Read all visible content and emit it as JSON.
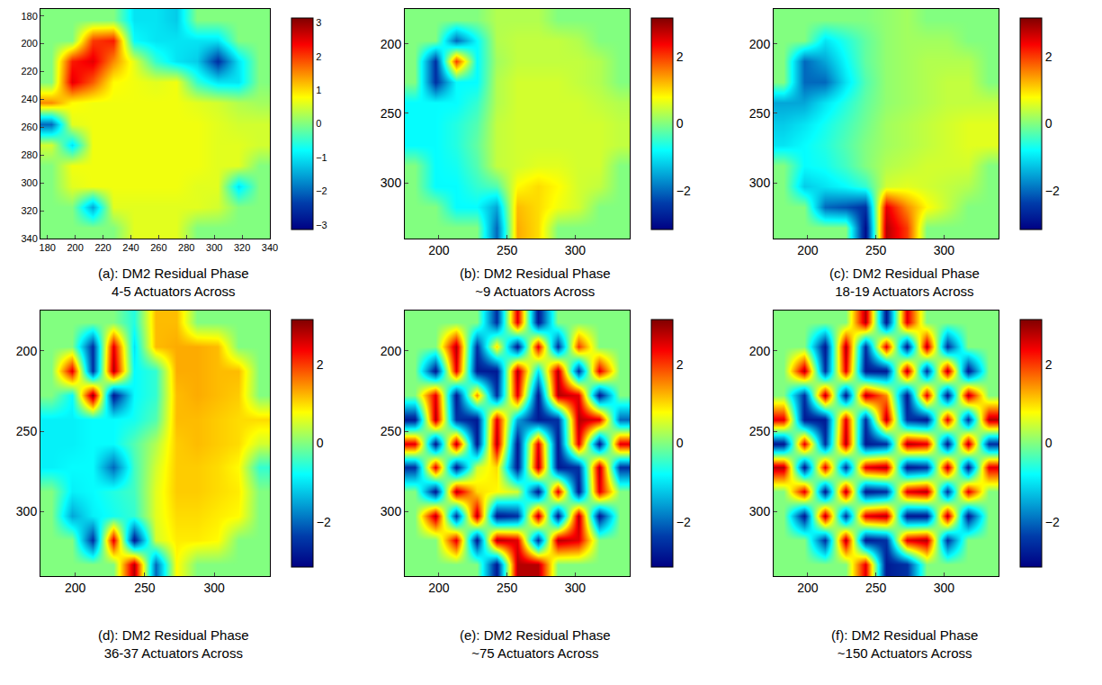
{
  "chart_data": [
    {
      "type": "heatmap",
      "title": "(a): DM2 Residual Phase",
      "subtitle": "4-5 Actuators Across",
      "color": "Jet",
      "x": [
        182.5,
        197.5,
        212.5,
        227.5,
        242.5,
        257.5,
        272.5,
        287.5,
        302.5,
        317.5,
        332.5
      ],
      "y": [
        182.5,
        197.5,
        212.5,
        227.5,
        242.5,
        257.5,
        272.5,
        287.5,
        302.5,
        317.5,
        332.5
      ],
      "z": [
        [
          0,
          0,
          0,
          0,
          -1,
          -1,
          -1.2,
          0,
          0,
          0,
          0
        ],
        [
          0,
          0,
          2,
          2.2,
          -0.8,
          -1,
          -1,
          -1,
          -1,
          0,
          0
        ],
        [
          0,
          2.2,
          2.5,
          1.5,
          0.6,
          -0.5,
          -1,
          -1.2,
          -2.5,
          -1,
          0
        ],
        [
          0,
          2.5,
          1.8,
          0.8,
          0.7,
          0.6,
          0.7,
          -0.5,
          -1,
          -1,
          0
        ],
        [
          1.5,
          0.8,
          0.7,
          0.7,
          0.7,
          0.7,
          0.7,
          0.6,
          0.5,
          0.3,
          0.2
        ],
        [
          -2,
          0.6,
          0.7,
          0.7,
          0.7,
          0.7,
          0.7,
          0.7,
          0.6,
          0.5,
          0.5
        ],
        [
          0.5,
          -1,
          0.7,
          0.7,
          0.7,
          0.7,
          0.7,
          0.7,
          0.6,
          0.6,
          0.5
        ],
        [
          0,
          0.7,
          0.7,
          0.7,
          0.7,
          0.7,
          0.7,
          0.7,
          0.6,
          0.6,
          0
        ],
        [
          0,
          0.6,
          0.7,
          0.7,
          0.7,
          0.7,
          0.7,
          0.6,
          0.6,
          -1,
          0
        ],
        [
          0,
          0,
          -1.5,
          0.6,
          0.6,
          0.6,
          0.6,
          0.6,
          0.5,
          0,
          0
        ],
        [
          0,
          0,
          0,
          0,
          0.6,
          0.6,
          0.6,
          0,
          0,
          0,
          0
        ]
      ],
      "xlim": [
        175,
        340
      ],
      "ylim": [
        340,
        175
      ],
      "xticks": [
        180,
        200,
        220,
        240,
        260,
        280,
        300,
        320,
        340
      ],
      "yticks": [
        180,
        200,
        220,
        240,
        260,
        280,
        300,
        320,
        340
      ],
      "zlim": [
        -3.14,
        3.14
      ],
      "colorbar_ticks": [
        -3,
        -2,
        -1,
        0,
        1,
        2,
        3
      ]
    },
    {
      "type": "heatmap",
      "title": "(b): DM2 Residual Phase",
      "subtitle": "~9 Actuators Across",
      "color": "Jet",
      "x": [
        182.5,
        197.5,
        212.5,
        227.5,
        242.5,
        257.5,
        272.5,
        287.5,
        302.5,
        317.5,
        332.5
      ],
      "y": [
        182.5,
        197.5,
        212.5,
        227.5,
        242.5,
        257.5,
        272.5,
        287.5,
        302.5,
        317.5,
        332.5
      ],
      "z": [
        [
          0,
          0,
          0,
          0,
          0.3,
          0.3,
          0.3,
          0,
          0,
          0,
          0
        ],
        [
          0,
          0,
          -2,
          -0.8,
          0.3,
          0.4,
          0.4,
          0.4,
          0.3,
          0,
          0
        ],
        [
          0,
          -2.5,
          2,
          -0.8,
          0.2,
          0.4,
          0.4,
          0.4,
          0.4,
          0.3,
          0
        ],
        [
          0,
          -2.5,
          -0.8,
          -0.8,
          0.3,
          0.5,
          0.5,
          0.5,
          0.4,
          0.3,
          0
        ],
        [
          -0.8,
          -0.8,
          -0.8,
          -0.5,
          0.3,
          0.5,
          0.5,
          0.5,
          0.5,
          0.4,
          0.3
        ],
        [
          -0.8,
          -0.8,
          -0.6,
          -0.3,
          0.4,
          0.5,
          0.5,
          0.5,
          0.5,
          0.5,
          0.4
        ],
        [
          -0.8,
          -0.8,
          -0.6,
          -0.2,
          0.4,
          0.5,
          0.5,
          0.5,
          0.5,
          0.5,
          0.4
        ],
        [
          0,
          -0.8,
          -0.7,
          -0.3,
          0.4,
          0.5,
          0.6,
          0.6,
          0.5,
          0.5,
          0
        ],
        [
          0,
          -0.8,
          -0.8,
          -0.5,
          -0.3,
          0.8,
          1,
          0.8,
          0.5,
          0.4,
          0
        ],
        [
          0,
          0,
          -0.8,
          -0.8,
          -1.5,
          1.2,
          1,
          0.7,
          0.5,
          0,
          0
        ],
        [
          0,
          0,
          0,
          0,
          -2,
          1.3,
          1,
          0,
          0,
          0,
          0
        ]
      ],
      "xlim": [
        175,
        340
      ],
      "ylim": [
        340,
        175
      ],
      "xticks": [
        200,
        250,
        300
      ],
      "yticks": [
        200,
        250,
        300
      ],
      "zlim": [
        -3.14,
        3.14
      ],
      "colorbar_ticks": [
        -2,
        0,
        2
      ]
    },
    {
      "type": "heatmap",
      "title": "(c): DM2 Residual Phase",
      "subtitle": "18-19 Actuators Across",
      "color": "Jet",
      "x": [
        182.5,
        197.5,
        212.5,
        227.5,
        242.5,
        257.5,
        272.5,
        287.5,
        302.5,
        317.5,
        332.5
      ],
      "y": [
        182.5,
        197.5,
        212.5,
        227.5,
        242.5,
        257.5,
        272.5,
        287.5,
        302.5,
        317.5,
        332.5
      ],
      "z": [
        [
          0,
          0,
          0,
          0,
          0,
          0.1,
          0.2,
          0,
          0,
          0,
          0
        ],
        [
          0,
          0,
          -1,
          -0.6,
          -0.2,
          0.1,
          0.2,
          0.2,
          0.2,
          0,
          0
        ],
        [
          0,
          -2,
          -1.5,
          -0.8,
          -0.2,
          0.1,
          0.2,
          0.3,
          0.3,
          0.3,
          0
        ],
        [
          0,
          -2,
          -2,
          -1,
          -0.3,
          0.1,
          0.2,
          0.3,
          0.4,
          0.4,
          0
        ],
        [
          -1.5,
          -1.5,
          -1,
          -0.6,
          -0.2,
          0.1,
          0.2,
          0.3,
          0.4,
          0.4,
          0.4
        ],
        [
          -1.2,
          -1,
          -0.7,
          -0.4,
          -0.1,
          0.2,
          0.3,
          0.4,
          0.5,
          0.6,
          0.6
        ],
        [
          -1,
          -0.8,
          -0.6,
          -0.3,
          0,
          0.2,
          0.3,
          0.4,
          0.5,
          0.6,
          0.6
        ],
        [
          0,
          -0.8,
          -0.7,
          -0.4,
          0,
          0.3,
          0.4,
          0.5,
          0.5,
          0.5,
          0
        ],
        [
          0,
          -1.2,
          -1,
          -0.8,
          -0.5,
          0.5,
          0.6,
          0.5,
          0.4,
          0.3,
          0
        ],
        [
          0,
          0,
          -2,
          -2.2,
          -2.5,
          2.5,
          1.5,
          0.8,
          0.4,
          0,
          0
        ],
        [
          0,
          0,
          0,
          0,
          -3,
          2.8,
          2,
          0,
          0,
          0,
          0
        ]
      ],
      "xlim": [
        175,
        340
      ],
      "ylim": [
        340,
        175
      ],
      "xticks": [
        200,
        250,
        300
      ],
      "yticks": [
        200,
        250,
        300
      ],
      "zlim": [
        -3.14,
        3.14
      ],
      "colorbar_ticks": [
        -2,
        0,
        2
      ]
    },
    {
      "type": "heatmap",
      "title": "(d): DM2 Residual Phase",
      "subtitle": "36-37 Actuators Across",
      "color": "Jet",
      "x": [
        182.5,
        197.5,
        212.5,
        227.5,
        242.5,
        257.5,
        272.5,
        287.5,
        302.5,
        317.5,
        332.5
      ],
      "y": [
        182.5,
        197.5,
        212.5,
        227.5,
        242.5,
        257.5,
        272.5,
        287.5,
        302.5,
        317.5,
        332.5
      ],
      "z": [
        [
          0,
          0,
          0,
          0,
          -0.6,
          1.2,
          1.2,
          0,
          0,
          0,
          0
        ],
        [
          0,
          0,
          -2.5,
          2.5,
          -1,
          1.2,
          1.3,
          1.3,
          1.2,
          0,
          0
        ],
        [
          0,
          2.5,
          -2.5,
          2.8,
          -0.8,
          -0.5,
          1.3,
          1.3,
          1.2,
          1.2,
          0
        ],
        [
          0,
          -0.8,
          3,
          -2.8,
          -0.8,
          -0.5,
          1.2,
          1.3,
          1.2,
          1.1,
          0
        ],
        [
          -0.9,
          -0.9,
          -0.8,
          -0.8,
          -0.7,
          -0.3,
          1.2,
          1.2,
          1.1,
          1,
          1
        ],
        [
          -0.9,
          -0.9,
          -0.8,
          -0.8,
          -0.3,
          0.3,
          1.1,
          1.2,
          1.1,
          1,
          0.5
        ],
        [
          -0.9,
          -0.8,
          -0.8,
          -2,
          -0.4,
          0.5,
          1.1,
          1.1,
          1,
          0.8,
          -0.5
        ],
        [
          0,
          -0.9,
          -0.8,
          -0.6,
          -0.4,
          0.6,
          1.1,
          1.1,
          1,
          0.9,
          0
        ],
        [
          0,
          -1.5,
          -0.9,
          -0.7,
          -0.5,
          0.6,
          1,
          1,
          0.9,
          0.8,
          0
        ],
        [
          0,
          0,
          -2.5,
          2.5,
          -2.8,
          0.5,
          0.9,
          0.9,
          0.8,
          0,
          0
        ],
        [
          0,
          0,
          0,
          0,
          2.8,
          -2,
          0.8,
          0,
          0,
          0,
          0
        ]
      ],
      "xlim": [
        175,
        340
      ],
      "ylim": [
        340,
        175
      ],
      "xticks": [
        200,
        250,
        300
      ],
      "yticks": [
        200,
        250,
        300
      ],
      "zlim": [
        -3.14,
        3.14
      ],
      "colorbar_ticks": [
        -2,
        0,
        2
      ]
    },
    {
      "type": "heatmap",
      "title": "(e): DM2 Residual Phase",
      "subtitle": "~75 Actuators Across",
      "color": "Jet",
      "x": [
        182.5,
        197.5,
        212.5,
        227.5,
        242.5,
        257.5,
        272.5,
        287.5,
        302.5,
        317.5,
        332.5
      ],
      "y": [
        182.5,
        197.5,
        212.5,
        227.5,
        242.5,
        257.5,
        272.5,
        287.5,
        302.5,
        317.5,
        332.5
      ],
      "z": [
        [
          0,
          0,
          0,
          0,
          -2.5,
          2.5,
          -2.8,
          0,
          0,
          0,
          0
        ],
        [
          0,
          0,
          2.8,
          -2.5,
          1,
          -2.8,
          2.5,
          -2.5,
          2,
          0,
          0
        ],
        [
          0,
          -2.8,
          2.5,
          -2.8,
          -2.8,
          2.8,
          -1,
          2.8,
          -2.5,
          2.5,
          0
        ],
        [
          0,
          2.5,
          -2.8,
          1.5,
          -2.5,
          2.5,
          -2.8,
          2.8,
          2.5,
          -2.8,
          0
        ],
        [
          -2.8,
          2.8,
          -2.5,
          -2.8,
          2.5,
          -1.5,
          -2.8,
          -2.5,
          2.8,
          2.5,
          -2
        ],
        [
          2.5,
          -2.8,
          2.8,
          -2.8,
          2.8,
          -2.8,
          2.5,
          -2.8,
          2.5,
          -2.8,
          2.5
        ],
        [
          -2.5,
          2.5,
          -2.8,
          0.5,
          1,
          -2.8,
          2.8,
          -2.8,
          -2.5,
          2.8,
          -2.5
        ],
        [
          0,
          -2.8,
          2.8,
          1,
          0.8,
          0.5,
          -2.8,
          2.5,
          -2.8,
          2.5,
          0
        ],
        [
          0,
          2.8,
          -2.5,
          2.8,
          -2.8,
          -2.5,
          2.8,
          -2.8,
          2.8,
          -2.8,
          0
        ],
        [
          0,
          0,
          2.5,
          -2.8,
          2.8,
          2.5,
          -2.5,
          2.8,
          2.5,
          0,
          0
        ],
        [
          0,
          0,
          0,
          0,
          -2.8,
          2.8,
          2.8,
          0,
          0,
          0,
          0
        ]
      ],
      "xlim": [
        175,
        340
      ],
      "ylim": [
        340,
        175
      ],
      "xticks": [
        200,
        250,
        300
      ],
      "yticks": [
        200,
        250,
        300
      ],
      "zlim": [
        -3.14,
        3.14
      ],
      "colorbar_ticks": [
        -2,
        0,
        2
      ]
    },
    {
      "type": "heatmap",
      "title": "(f): DM2 Residual Phase",
      "subtitle": "~150 Actuators Across",
      "color": "Jet",
      "x": [
        182.5,
        197.5,
        212.5,
        227.5,
        242.5,
        257.5,
        272.5,
        287.5,
        302.5,
        317.5,
        332.5
      ],
      "y": [
        182.5,
        197.5,
        212.5,
        227.5,
        242.5,
        257.5,
        272.5,
        287.5,
        302.5,
        317.5,
        332.5
      ],
      "z": [
        [
          0,
          0,
          0,
          0,
          2.8,
          -2.8,
          2.5,
          0,
          0,
          0,
          0
        ],
        [
          0,
          0,
          -2.8,
          2.8,
          -2.5,
          2.5,
          -2.8,
          2.8,
          -2.5,
          0,
          0
        ],
        [
          0,
          2.8,
          -2.5,
          2.5,
          -2.8,
          -2.8,
          2.8,
          -2.5,
          2.8,
          -2.8,
          0
        ],
        [
          0,
          -2.5,
          2.8,
          -2.8,
          2.8,
          1.5,
          -2.8,
          2.5,
          -2.8,
          2.8,
          0
        ],
        [
          2.5,
          -2.8,
          -2.8,
          2.5,
          -2.5,
          2.8,
          -2.5,
          -2.8,
          2.5,
          -2.5,
          2.8
        ],
        [
          -2.8,
          2.5,
          -2.5,
          2.8,
          -2.8,
          -2.5,
          2.8,
          2.5,
          -2.8,
          2.8,
          -2.5
        ],
        [
          2.8,
          -2.8,
          2.5,
          -2.5,
          2.5,
          2.8,
          -2.8,
          -2.5,
          2.8,
          -2.8,
          2.5
        ],
        [
          0,
          2.5,
          -2.8,
          2.8,
          -2.8,
          -2.5,
          2.5,
          2.8,
          -2.5,
          2.5,
          0
        ],
        [
          0,
          -2.8,
          2.8,
          -2.5,
          2.5,
          2.8,
          -2.8,
          -2.8,
          2.8,
          -2.8,
          0
        ],
        [
          0,
          0,
          -2.5,
          2.8,
          -2.8,
          -2.5,
          2.5,
          2.8,
          -2.5,
          0,
          0
        ],
        [
          0,
          0,
          0,
          0,
          2.5,
          -2.8,
          -2.5,
          0,
          0,
          0,
          0
        ]
      ],
      "xlim": [
        175,
        340
      ],
      "ylim": [
        340,
        175
      ],
      "xticks": [
        200,
        250,
        300
      ],
      "yticks": [
        200,
        250,
        300
      ],
      "zlim": [
        -3.14,
        3.14
      ],
      "colorbar_ticks": [
        -2,
        0,
        2
      ]
    }
  ]
}
